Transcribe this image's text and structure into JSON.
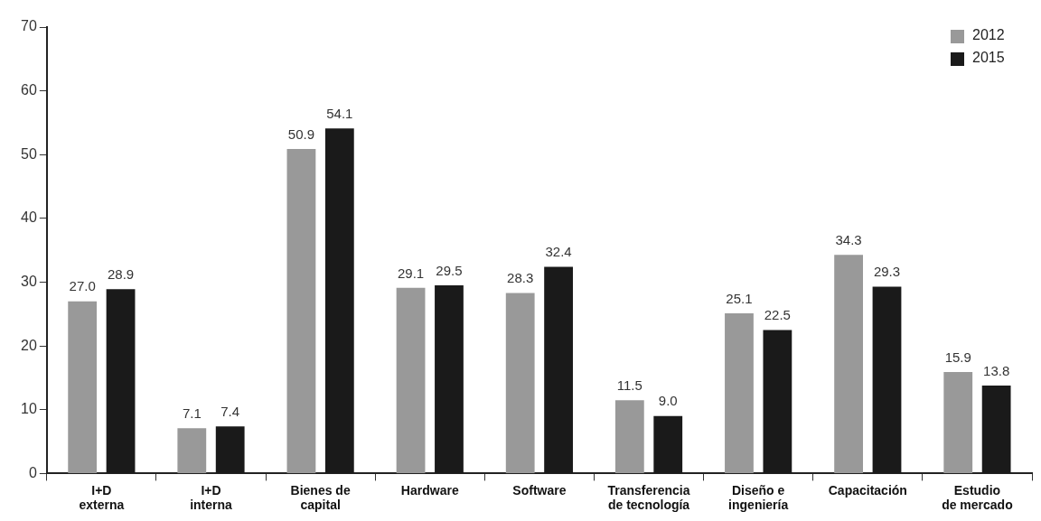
{
  "chart_data": {
    "type": "bar",
    "categories": [
      "I+D\nexterna",
      "I+D\ninterna",
      "Bienes de\ncapital",
      "Hardware",
      "Software",
      "Transferencia\nde tecnología",
      "Diseño e\ningeniería",
      "Capacitación",
      "Estudio\nde mercado"
    ],
    "series": [
      {
        "name": "2012",
        "color": "#999999",
        "values": [
          27.0,
          7.1,
          50.9,
          29.1,
          28.3,
          11.5,
          25.1,
          34.3,
          15.9
        ],
        "value_labels": [
          "27.0",
          "7.1",
          "50.9",
          "29.1",
          "28.3",
          "11.5",
          "25.1",
          "34.3",
          "15.9"
        ]
      },
      {
        "name": "2015",
        "color": "#1a1a1a",
        "values": [
          28.9,
          7.4,
          54.1,
          29.5,
          32.4,
          9.0,
          22.5,
          29.3,
          13.8
        ],
        "value_labels": [
          "28.9",
          "7.4",
          "54.1",
          "29.5",
          "32.4",
          "9.0",
          "22.5",
          "29.3",
          "13.8"
        ]
      }
    ],
    "ylim": [
      0,
      70
    ],
    "yticks": [
      0,
      10,
      20,
      30,
      40,
      50,
      60,
      70
    ],
    "grid": false,
    "legend": "top right"
  }
}
